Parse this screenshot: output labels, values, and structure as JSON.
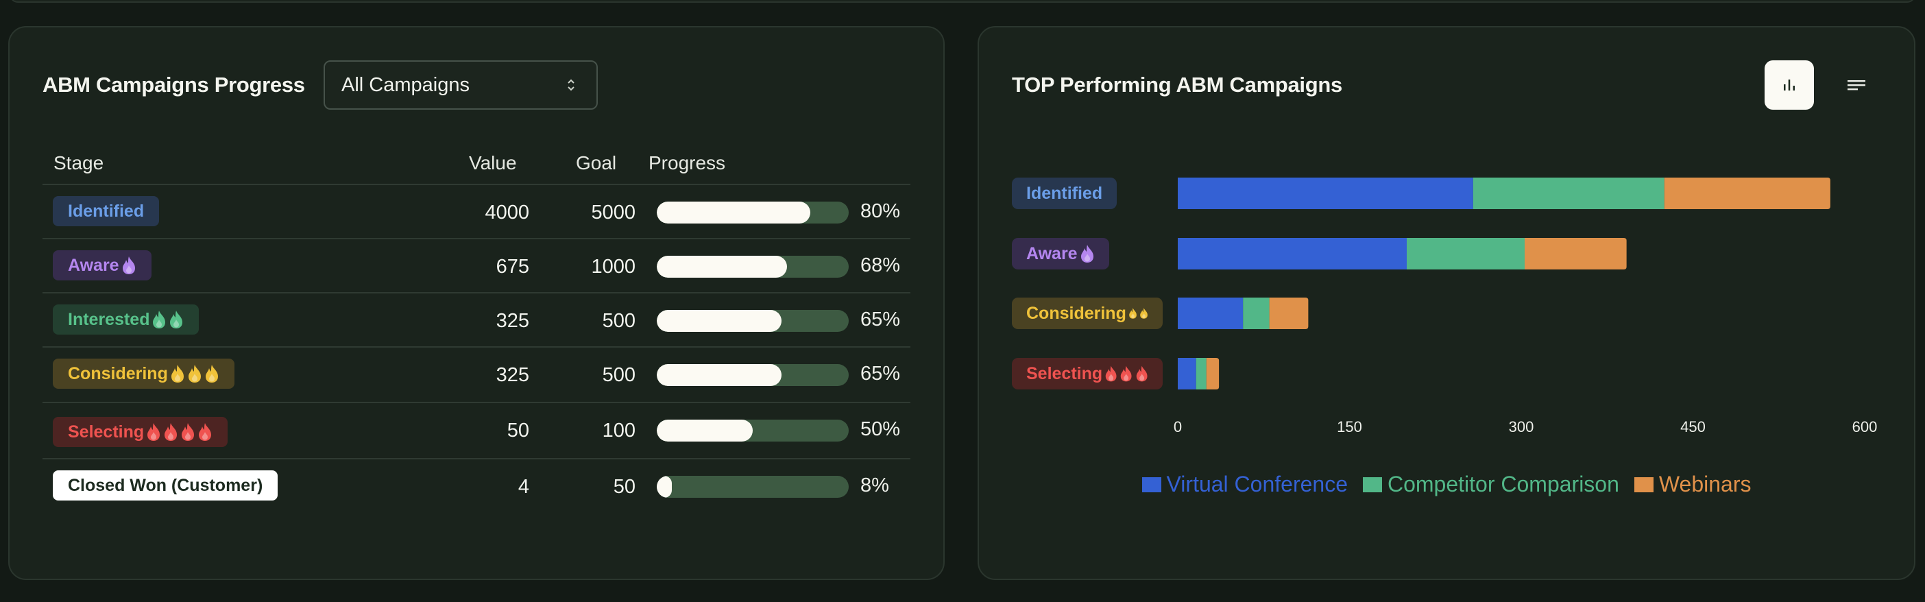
{
  "left": {
    "title": "ABM Campaigns Progress",
    "select_value": "All Campaigns",
    "headers": {
      "stage": "Stage",
      "value": "Value",
      "goal": "Goal",
      "progress": "Progress"
    },
    "rows": [
      {
        "stage": "Identified",
        "flames": 0,
        "value": "4000",
        "goal": "5000",
        "pct": 80,
        "pct_label": "80%",
        "bg": "#27374f",
        "fg": "#6b9ee8"
      },
      {
        "stage": "Aware",
        "flames": 1,
        "value": "675",
        "goal": "1000",
        "pct": 68,
        "pct_label": "68%",
        "bg": "#362c4d",
        "fg": "#b486ef"
      },
      {
        "stage": "Interested",
        "flames": 2,
        "value": "325",
        "goal": "500",
        "pct": 65,
        "pct_label": "65%",
        "bg": "#234030",
        "fg": "#58c28b"
      },
      {
        "stage": "Considering",
        "flames": 3,
        "value": "325",
        "goal": "500",
        "pct": 65,
        "pct_label": "65%",
        "bg": "#4a4222",
        "fg": "#f0c23a"
      },
      {
        "stage": "Selecting",
        "flames": 4,
        "value": "50",
        "goal": "100",
        "pct": 50,
        "pct_label": "50%",
        "bg": "#4d2422",
        "fg": "#ef5350"
      },
      {
        "stage": "Closed Won (Customer)",
        "flames": 0,
        "value": "4",
        "goal": "50",
        "pct": 8,
        "pct_label": "8%",
        "bg": "#ffffff",
        "fg": "#1c2a1f"
      }
    ]
  },
  "right": {
    "title": "TOP Performing ABM Campaigns",
    "toggle_icons": [
      "bar-chart-icon",
      "list-icon"
    ]
  },
  "chart_data": {
    "type": "bar",
    "orientation": "horizontal",
    "stacked": true,
    "categories": [
      "Identified",
      "Aware",
      "Considering",
      "Selecting"
    ],
    "series": [
      {
        "name": "Virtual Conference",
        "color": "#3461d4",
        "values": [
          258,
          200,
          57,
          16
        ]
      },
      {
        "name": "Competitor Comparison",
        "color": "#52b788",
        "values": [
          167,
          103,
          23,
          9
        ]
      },
      {
        "name": "Webinars",
        "color": "#e0914a",
        "values": [
          145,
          89,
          34,
          11
        ]
      }
    ],
    "xlim": [
      0,
      600
    ],
    "xticks": [
      "0",
      "150",
      "300",
      "450",
      "600"
    ],
    "legend": "bottom"
  },
  "category_styles": [
    {
      "flames": 0,
      "bg": "#27374f",
      "fg": "#6b9ee8"
    },
    {
      "flames": 1,
      "bg": "#362c4d",
      "fg": "#b486ef"
    },
    {
      "flames": 2,
      "bg": "#4a4222",
      "fg": "#f0c23a"
    },
    {
      "flames": 3,
      "bg": "#4d2422",
      "fg": "#ef5350"
    }
  ]
}
